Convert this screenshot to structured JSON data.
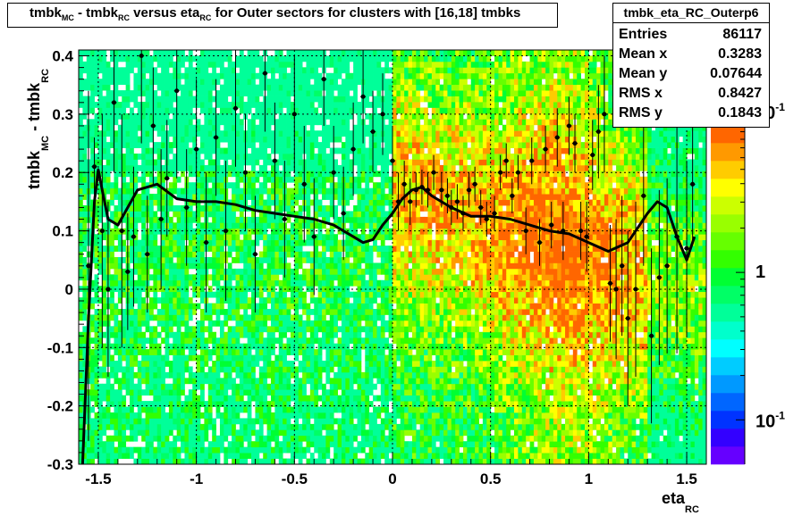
{
  "title": {
    "segments": [
      {
        "t": "tmbk"
      },
      {
        "sub": "MC"
      },
      {
        "t": " - tmbk"
      },
      {
        "sub": "RC"
      },
      {
        "t": " versus eta"
      },
      {
        "sub": "RC"
      },
      {
        "t": " for Outer sectors for clusters with [16,18] tmbks"
      }
    ]
  },
  "stats": {
    "name": "tmbk_eta_RC_Outerp6",
    "rows": [
      {
        "label": "Entries",
        "value": "86117"
      },
      {
        "label": "Mean x",
        "value": "0.3283"
      },
      {
        "label": "Mean y",
        "value": "0.07644"
      },
      {
        "label": "RMS x",
        "value": "0.8427"
      },
      {
        "label": "RMS y",
        "value": "0.1843"
      }
    ]
  },
  "chart_data": {
    "type": "heatmap",
    "xlabel": "eta",
    "xlabel_sub": "RC",
    "ylabel": "tmbk",
    "ylabel_sub1": "MC",
    "ylabel_mid": " - tmbk",
    "ylabel_sub2": "RC",
    "xlim": [
      -1.6,
      1.6
    ],
    "ylim": [
      -0.3,
      0.41
    ],
    "x_ticks": [
      -1.5,
      -1,
      -0.5,
      0,
      0.5,
      1,
      1.5
    ],
    "x_tick_labels": [
      "-1.5",
      "-1",
      "-0.5",
      "0",
      "0.5",
      "1",
      "1.5"
    ],
    "y_ticks": [
      -0.3,
      -0.2,
      -0.1,
      0,
      0.1,
      0.2,
      0.3,
      0.4
    ],
    "y_tick_labels": [
      "-0.3",
      "-0.2",
      "-0.1",
      "0",
      "0.1",
      "0.2",
      "0.3",
      "0.4"
    ],
    "grid": true,
    "colorbar": {
      "scale": "log",
      "labels": [
        "1",
        "10"
      ],
      "label_exponents": [
        "",
        "-1"
      ],
      "label_values": [
        1,
        0.1
      ],
      "colors": [
        "#6600ff",
        "#3300ff",
        "#0033ff",
        "#0066ff",
        "#0099ff",
        "#00ccff",
        "#00ffff",
        "#00ffcc",
        "#00ff99",
        "#00ff66",
        "#00ff33",
        "#33ff00",
        "#66ff00",
        "#99ff00",
        "#ccff00",
        "#ffff00",
        "#ffcc00",
        "#ff9900",
        "#ff6600"
      ]
    },
    "profile": {
      "x": [
        -1.58,
        -1.55,
        -1.52,
        -1.5,
        -1.48,
        -1.45,
        -1.4,
        -1.35,
        -1.3,
        -1.2,
        -1.1,
        -1.0,
        -0.9,
        -0.8,
        -0.7,
        -0.6,
        -0.5,
        -0.4,
        -0.3,
        -0.2,
        -0.15,
        -0.1,
        -0.05,
        0.0,
        0.05,
        0.1,
        0.15,
        0.2,
        0.3,
        0.4,
        0.5,
        0.6,
        0.7,
        0.8,
        0.9,
        1.0,
        1.1,
        1.2,
        1.3,
        1.35,
        1.4,
        1.45,
        1.5,
        1.52,
        1.54
      ],
      "y": [
        -0.3,
        -0.05,
        0.15,
        0.205,
        0.17,
        0.12,
        0.11,
        0.14,
        0.17,
        0.18,
        0.155,
        0.15,
        0.15,
        0.145,
        0.135,
        0.13,
        0.125,
        0.12,
        0.11,
        0.09,
        0.08,
        0.085,
        0.11,
        0.13,
        0.155,
        0.17,
        0.175,
        0.16,
        0.14,
        0.125,
        0.125,
        0.12,
        0.11,
        0.1,
        0.095,
        0.08,
        0.065,
        0.08,
        0.13,
        0.15,
        0.14,
        0.09,
        0.05,
        0.07,
        0.09
      ]
    },
    "points": [
      {
        "x": -1.55,
        "y": 0.04,
        "err": 0.3
      },
      {
        "x": -1.52,
        "y": 0.21,
        "err": 0.05
      },
      {
        "x": -1.48,
        "y": 0.1,
        "err": 0.2
      },
      {
        "x": -1.45,
        "y": 0.0,
        "err": 0.15
      },
      {
        "x": -1.42,
        "y": 0.32,
        "err": 0.12
      },
      {
        "x": -1.38,
        "y": 0.1,
        "err": 0.2
      },
      {
        "x": -1.35,
        "y": 0.03,
        "err": 0.1
      },
      {
        "x": -1.32,
        "y": 0.09,
        "err": 0.12
      },
      {
        "x": -1.28,
        "y": 0.4,
        "err": 0.15
      },
      {
        "x": -1.25,
        "y": 0.06,
        "err": 0.1
      },
      {
        "x": -1.22,
        "y": 0.28,
        "err": 0.1
      },
      {
        "x": -1.18,
        "y": 0.12,
        "err": 0.12
      },
      {
        "x": -1.15,
        "y": 0.19,
        "err": 0.1
      },
      {
        "x": -1.1,
        "y": 0.34,
        "err": 0.15
      },
      {
        "x": -1.05,
        "y": 0.14,
        "err": 0.1
      },
      {
        "x": -1.0,
        "y": 0.24,
        "err": 0.12
      },
      {
        "x": -0.95,
        "y": 0.08,
        "err": 0.12
      },
      {
        "x": -0.9,
        "y": 0.26,
        "err": 0.1
      },
      {
        "x": -0.85,
        "y": 0.1,
        "err": 0.12
      },
      {
        "x": -0.8,
        "y": 0.31,
        "err": 0.1
      },
      {
        "x": -0.75,
        "y": 0.2,
        "err": 0.1
      },
      {
        "x": -0.7,
        "y": 0.06,
        "err": 0.1
      },
      {
        "x": -0.65,
        "y": 0.37,
        "err": 0.1
      },
      {
        "x": -0.6,
        "y": 0.22,
        "err": 0.1
      },
      {
        "x": -0.55,
        "y": 0.12,
        "err": 0.1
      },
      {
        "x": -0.5,
        "y": 0.3,
        "err": 0.1
      },
      {
        "x": -0.45,
        "y": 0.18,
        "err": 0.1
      },
      {
        "x": -0.4,
        "y": 0.09,
        "err": 0.1
      },
      {
        "x": -0.35,
        "y": 0.36,
        "err": 0.08
      },
      {
        "x": -0.3,
        "y": 0.2,
        "err": 0.08
      },
      {
        "x": -0.25,
        "y": 0.13,
        "err": 0.08
      },
      {
        "x": -0.2,
        "y": 0.24,
        "err": 0.08
      },
      {
        "x": -0.15,
        "y": 0.33,
        "err": 0.08
      },
      {
        "x": -0.1,
        "y": 0.27,
        "err": 0.07
      },
      {
        "x": -0.05,
        "y": 0.3,
        "err": 0.07
      },
      {
        "x": 0.0,
        "y": 0.22,
        "err": 0.06
      },
      {
        "x": 0.03,
        "y": 0.15,
        "err": 0.05
      },
      {
        "x": 0.06,
        "y": 0.18,
        "err": 0.04
      },
      {
        "x": 0.09,
        "y": 0.15,
        "err": 0.04
      },
      {
        "x": 0.12,
        "y": 0.17,
        "err": 0.03
      },
      {
        "x": 0.15,
        "y": 0.175,
        "err": 0.03
      },
      {
        "x": 0.18,
        "y": 0.17,
        "err": 0.03
      },
      {
        "x": 0.21,
        "y": 0.2,
        "err": 0.03
      },
      {
        "x": 0.25,
        "y": 0.17,
        "err": 0.03
      },
      {
        "x": 0.28,
        "y": 0.16,
        "err": 0.03
      },
      {
        "x": 0.3,
        "y": 0.14,
        "err": 0.03
      },
      {
        "x": 0.33,
        "y": 0.15,
        "err": 0.03
      },
      {
        "x": 0.36,
        "y": 0.13,
        "err": 0.03
      },
      {
        "x": 0.39,
        "y": 0.17,
        "err": 0.03
      },
      {
        "x": 0.42,
        "y": 0.18,
        "err": 0.03
      },
      {
        "x": 0.45,
        "y": 0.14,
        "err": 0.03
      },
      {
        "x": 0.48,
        "y": 0.12,
        "err": 0.03
      },
      {
        "x": 0.52,
        "y": 0.13,
        "err": 0.03
      },
      {
        "x": 0.55,
        "y": 0.2,
        "err": 0.03
      },
      {
        "x": 0.58,
        "y": 0.22,
        "err": 0.03
      },
      {
        "x": 0.61,
        "y": 0.16,
        "err": 0.03
      },
      {
        "x": 0.64,
        "y": 0.2,
        "err": 0.03
      },
      {
        "x": 0.68,
        "y": 0.1,
        "err": 0.04
      },
      {
        "x": 0.71,
        "y": 0.22,
        "err": 0.04
      },
      {
        "x": 0.75,
        "y": 0.08,
        "err": 0.04
      },
      {
        "x": 0.78,
        "y": 0.24,
        "err": 0.04
      },
      {
        "x": 0.81,
        "y": 0.11,
        "err": 0.04
      },
      {
        "x": 0.84,
        "y": 0.26,
        "err": 0.05
      },
      {
        "x": 0.87,
        "y": 0.1,
        "err": 0.05
      },
      {
        "x": 0.9,
        "y": 0.28,
        "err": 0.05
      },
      {
        "x": 0.93,
        "y": 0.25,
        "err": 0.05
      },
      {
        "x": 0.96,
        "y": 0.1,
        "err": 0.05
      },
      {
        "x": 0.99,
        "y": 0.09,
        "err": 0.06
      },
      {
        "x": 1.02,
        "y": 0.23,
        "err": 0.06
      },
      {
        "x": 1.05,
        "y": 0.27,
        "err": 0.08
      },
      {
        "x": 1.08,
        "y": 0.3,
        "err": 0.1
      },
      {
        "x": 1.11,
        "y": 0.01,
        "err": 0.1
      },
      {
        "x": 1.14,
        "y": 0.0,
        "err": 0.12
      },
      {
        "x": 1.17,
        "y": 0.04,
        "err": 0.12
      },
      {
        "x": 1.2,
        "y": -0.05,
        "err": 0.15
      },
      {
        "x": 1.24,
        "y": 0.0,
        "err": 0.15
      },
      {
        "x": 1.28,
        "y": 0.16,
        "err": 0.12
      },
      {
        "x": 1.32,
        "y": -0.08,
        "err": 0.15
      },
      {
        "x": 1.36,
        "y": 0.02,
        "err": 0.15
      },
      {
        "x": 1.4,
        "y": 0.04,
        "err": 0.15
      },
      {
        "x": 1.45,
        "y": 0.09,
        "err": 0.2
      },
      {
        "x": 1.5,
        "y": 0.07,
        "err": 0.15
      },
      {
        "x": 1.53,
        "y": 0.18,
        "err": 0.1
      }
    ]
  }
}
